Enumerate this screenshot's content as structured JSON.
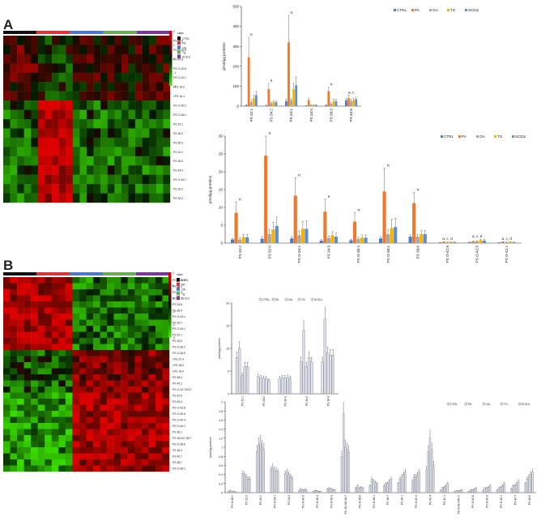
{
  "panel_labels": [
    "A",
    "B"
  ],
  "colors": {
    "CTRL": "#4a7ec2",
    "PA": "#ee7a2d",
    "OA": "#a6a6a6",
    "TG": "#f5b400",
    "SCD1i": "#5d8fcf",
    "class_bar": [
      "#111111",
      "#d9363a",
      "#4f79c8",
      "#6aac5a",
      "#7a3a9c"
    ],
    "heat_pos": "#d20000",
    "heat_neg": "#6fe628",
    "heat_mid": "#000000",
    "hatch_bar": "#d6d8e6"
  },
  "legend_class": {
    "title": "class",
    "items": [
      "CTRL",
      "PA",
      "OA",
      "Tg",
      "SCD1i"
    ],
    "scale_ticks_A": [
      "2",
      "1",
      "0",
      "-1",
      "-2"
    ],
    "scale_ticks_B": [
      "2",
      "1",
      "0",
      "-1",
      "-2",
      "-3"
    ]
  },
  "heatmap_A": {
    "rows": [
      "PS 38:6",
      "PS O-40:6",
      "PS 40:6",
      "PS O-42:6",
      "PS O-42:1",
      "LPS 16:0",
      "LPS 16:1",
      "PS O-36:2",
      "PS O-36:1",
      "PS 32:1",
      "PS 36:2",
      "PS 36:3",
      "PS 34:1",
      "PS 36:3",
      "PS 34:3",
      "PS O-34:1",
      "PS 32:0",
      "PS 32:2"
    ]
  },
  "heatmap_B": {
    "rows": [
      "PS O-38:0",
      "PS 38:3",
      "PS 34:2",
      "PS 32:2",
      "PS 34:5",
      "PS 36:4",
      "PS O-34:1",
      "PS 34:1",
      "PS O-34:1",
      "PS 32:1",
      "PS 32:0",
      "PS O-36:2",
      "PS O-36:5",
      "LPS 22:4",
      "LPS 18:0",
      "LPS 16:0",
      "PS 38:1",
      "PS 40:1",
      "PS O-42:7/40:0",
      "PS 42:6",
      "PS 40:4",
      "PS O-42:8",
      "PS O-40:5",
      "PS O-40:4",
      "PS O-40:1",
      "PS 36:1",
      "PS 36:0/O-38:7",
      "PS O-38:6",
      "PS 36:2",
      "PS 40:7",
      "PS 38:7",
      "PS O-38:1"
    ]
  },
  "chart_data": [
    {
      "type": "bar",
      "panel": "A-top",
      "categories": [
        "PS 32:1",
        "PS 34:2",
        "PS 34:1",
        "PS 34:0",
        "PS 36:3",
        "PS 40:6"
      ],
      "series": [
        {
          "name": "CTRL",
          "values": [
            5,
            3,
            25,
            2,
            5,
            30
          ]
        },
        {
          "name": "PA",
          "values": [
            245,
            85,
            320,
            30,
            75,
            40
          ]
        },
        {
          "name": "OA",
          "values": [
            20,
            15,
            30,
            5,
            12,
            25
          ]
        },
        {
          "name": "TG",
          "values": [
            40,
            20,
            85,
            5,
            25,
            30
          ]
        },
        {
          "name": "SCD1i",
          "values": [
            55,
            20,
            105,
            5,
            25,
            35
          ]
        }
      ],
      "errors": [
        [
          3,
          2,
          10,
          1,
          3,
          10
        ],
        [
          100,
          30,
          135,
          10,
          20,
          15
        ],
        [
          10,
          5,
          10,
          2,
          5,
          10
        ],
        [
          15,
          8,
          30,
          2,
          10,
          10
        ],
        [
          20,
          8,
          40,
          2,
          10,
          10
        ]
      ],
      "annotations": [
        "π",
        "a",
        "π",
        "",
        "π",
        "a, c",
        "a",
        "π",
        "a, c, d"
      ],
      "ylabel": "pmol/µg proteins",
      "ylim": [
        0,
        500
      ],
      "yticks": [
        "0",
        "100",
        "200",
        "300",
        "400",
        "500"
      ],
      "legend": [
        "CTRL",
        "PA",
        "OA",
        "TG",
        "SCD1i"
      ]
    },
    {
      "type": "bar",
      "panel": "A-bottom",
      "categories": [
        "PS 32:2",
        "PS 32:0",
        "PS O-34:1",
        "PS 34:3",
        "PS O-36:2",
        "PS O-36:1",
        "PS 38:6",
        "PS O-42:6",
        "PS O-42:5",
        "PS O-42:1"
      ],
      "series": [
        {
          "name": "CTRL",
          "values": [
            1.0,
            1.2,
            1.3,
            0.7,
            0.8,
            1.3,
            1.8,
            0.1,
            0.2,
            0.1
          ]
        },
        {
          "name": "PA",
          "values": [
            8.5,
            24.5,
            13.3,
            8.8,
            6.0,
            14.5,
            11.2,
            0.3,
            0.4,
            0.3
          ]
        },
        {
          "name": "OA",
          "values": [
            1.0,
            2.5,
            2.2,
            1.4,
            1.1,
            2.5,
            1.8,
            0.2,
            0.5,
            0.2
          ]
        },
        {
          "name": "TG",
          "values": [
            1.7,
            3.8,
            4.0,
            2.2,
            1.5,
            4.2,
            2.5,
            0.3,
            0.8,
            0.3
          ]
        },
        {
          "name": "SCD1i",
          "values": [
            1.6,
            4.8,
            4.0,
            1.8,
            1.5,
            4.5,
            2.5,
            0.2,
            0.7,
            0.2
          ]
        }
      ],
      "errors": [
        [
          0.3,
          0.5,
          0.5,
          0.3,
          0.3,
          0.5,
          0.5,
          0.05,
          0.1,
          0.05
        ],
        [
          3,
          10.5,
          5,
          3.5,
          2.5,
          6.5,
          3,
          0.1,
          0.2,
          0.1
        ],
        [
          0.5,
          1.2,
          1.2,
          0.6,
          0.5,
          1.2,
          0.6,
          0.1,
          0.2,
          0.1
        ],
        [
          0.8,
          2,
          2,
          1,
          0.8,
          2.5,
          1,
          0.1,
          0.3,
          0.1
        ],
        [
          0.8,
          2.5,
          2.2,
          1,
          0.8,
          2.5,
          1,
          0.1,
          0.3,
          0.1
        ]
      ],
      "annotations": [
        "π",
        "π",
        "π",
        "π",
        "π",
        "π",
        "π",
        "a, c, d",
        "a, c, d",
        "a, c, d"
      ],
      "ylabel": "pmol/µg proteins",
      "ylim": [
        0,
        30
      ],
      "yticks": [
        "0",
        "5",
        "10",
        "15",
        "20",
        "25",
        "30"
      ],
      "legend": [
        "CTRL",
        "PA",
        "OA",
        "TG",
        "SCD1i"
      ]
    },
    {
      "type": "bar",
      "panel": "B-top",
      "categories": [
        "PS 32:1",
        "PS 34:2",
        "PS 36:3",
        "PS 36:2",
        "PS 38:4"
      ],
      "series": [
        {
          "name": "CTRL",
          "values": [
            8,
            3.8,
            3.3,
            7,
            7
          ]
        },
        {
          "name": "PA",
          "values": [
            10,
            3.5,
            3.5,
            14,
            16.5
          ]
        },
        {
          "name": "OA",
          "values": [
            4,
            3.4,
            3.5,
            6,
            9
          ]
        },
        {
          "name": "TG",
          "values": [
            6,
            3.3,
            3.6,
            8,
            8.5
          ]
        },
        {
          "name": "SCD1i",
          "values": [
            6,
            2.9,
            3.4,
            7,
            8.5
          ]
        }
      ],
      "ylabel": "pmol/µg proteins",
      "ylim": [
        0,
        20
      ],
      "yticks": [
        "0",
        "5",
        "10",
        "15",
        "20"
      ],
      "legend": [
        "CTRL",
        "PA",
        "OA",
        "TG",
        "SCD1i"
      ]
    },
    {
      "type": "bar",
      "panel": "B-bottom",
      "categories": [
        "PS O-38:0",
        "PS 32:2",
        "PS 32:0",
        "PS O-34:1",
        "PS 34:3",
        "PS O-36:5",
        "PS O-36:3",
        "PS O-36:2",
        "PS 36:0/O-38:7",
        "PS O-38:6",
        "PS O-38:1",
        "PS 38:7",
        "PS 38:1",
        "PS O-40:3",
        "PS 40:4",
        "PS 40:1",
        "PS O-42:7/40:0",
        "PS O-42:6",
        "PS O-42:5",
        "PS O-42:1",
        "PS 42:7",
        "PS 42:6"
      ],
      "series": [
        {
          "name": "CTRL",
          "values": [
            0.03,
            0.42,
            0.9,
            0.5,
            0.42,
            0.05,
            0.03,
            0.08,
            0.8,
            0.1,
            0.15,
            0.15,
            0.2,
            0.25,
            0.5,
            0.05,
            0.02,
            0.03,
            0.05,
            0.06,
            0.08,
            0.2
          ]
        },
        {
          "name": "PA",
          "values": [
            0.05,
            0.4,
            1.05,
            0.55,
            0.45,
            0.08,
            0.05,
            0.1,
            1.75,
            0.15,
            0.3,
            0.2,
            0.3,
            0.35,
            0.9,
            0.1,
            0.04,
            0.06,
            0.1,
            0.1,
            0.15,
            0.3
          ]
        },
        {
          "name": "OA",
          "values": [
            0.02,
            0.35,
            1.1,
            0.5,
            0.4,
            0.06,
            0.04,
            0.08,
            1.0,
            0.1,
            0.25,
            0.2,
            0.35,
            0.35,
            1.2,
            0.12,
            0.04,
            0.06,
            0.1,
            0.12,
            0.15,
            0.35
          ]
        },
        {
          "name": "TG",
          "values": [
            0.03,
            0.3,
            1.0,
            0.48,
            0.35,
            0.07,
            0.03,
            0.07,
            0.95,
            0.12,
            0.22,
            0.25,
            0.4,
            0.4,
            0.95,
            0.15,
            0.05,
            0.08,
            0.12,
            0.15,
            0.2,
            0.4
          ]
        },
        {
          "name": "SCD1i",
          "values": [
            0.02,
            0.3,
            0.95,
            0.45,
            0.32,
            0.06,
            0.03,
            0.06,
            0.9,
            0.1,
            0.2,
            0.3,
            0.45,
            0.45,
            0.6,
            0.2,
            0.06,
            0.1,
            0.15,
            0.2,
            0.25,
            0.45
          ]
        }
      ],
      "ylabel": "pmol/µg proteins",
      "ylim": [
        0,
        2
      ],
      "yticks": [
        "0",
        "0.2",
        "0.4",
        "0.6",
        "0.8",
        "1",
        "1.2",
        "1.4",
        "1.6",
        "1.8",
        "2"
      ],
      "legend": [
        "CTRL",
        "PA",
        "OA",
        "TG",
        "SCD1i"
      ]
    }
  ]
}
